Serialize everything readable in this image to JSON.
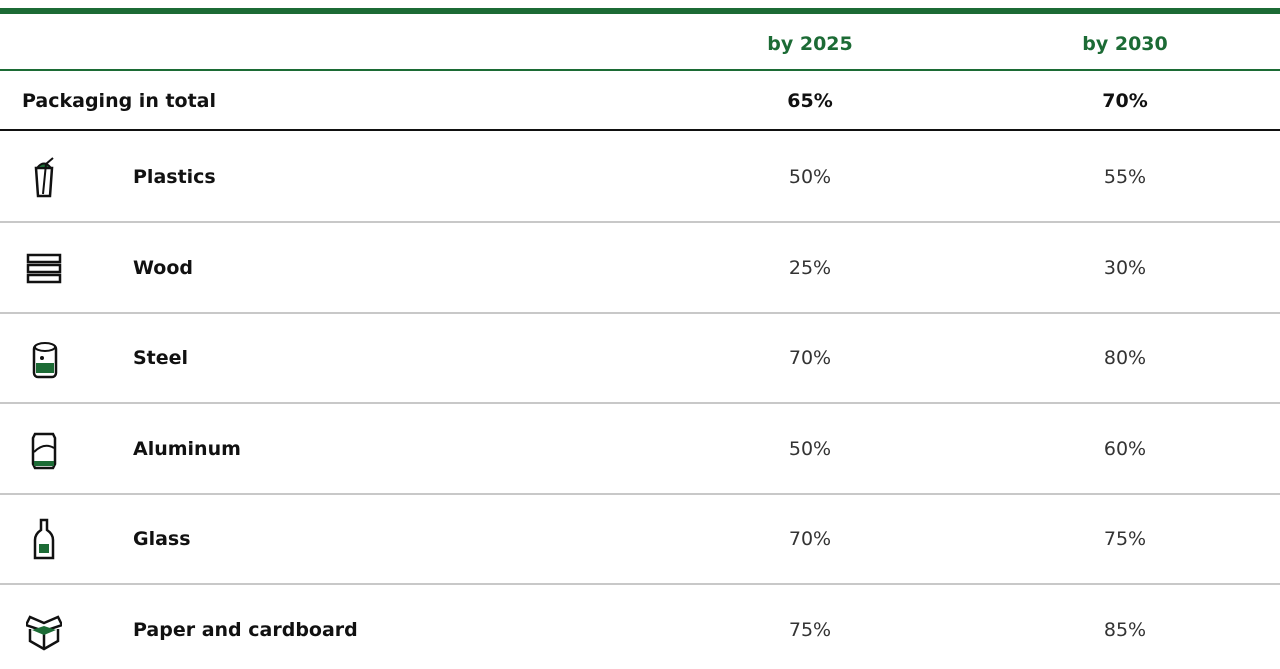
{
  "table": {
    "header": [
      "by 2025",
      "by 2030"
    ],
    "total": [
      "Packaging in total",
      "65%",
      "70%"
    ],
    "rows": [
      [
        "Plastics",
        "50%",
        "55%"
      ],
      [
        "Wood",
        "25%",
        "30%"
      ],
      [
        "Steel",
        "70%",
        "80%"
      ],
      [
        "Aluminum",
        "50%",
        "60%"
      ],
      [
        "Glass",
        "70%",
        "75%"
      ],
      [
        "Paper and cardboard",
        "75%",
        "85%"
      ]
    ]
  }
}
